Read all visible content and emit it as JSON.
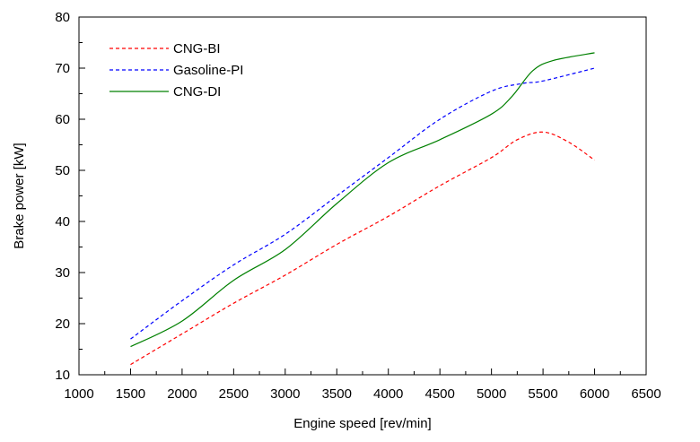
{
  "chart_data": {
    "type": "line",
    "title": "",
    "xlabel": "Engine speed [rev/min]",
    "ylabel": "Brake power [kW]",
    "xlim": [
      1000,
      6500
    ],
    "ylim": [
      10,
      80
    ],
    "xticks": [
      1000,
      1500,
      2000,
      2500,
      3000,
      3500,
      4000,
      4500,
      5000,
      5500,
      6000,
      6500
    ],
    "yticks": [
      10,
      20,
      30,
      40,
      50,
      60,
      70,
      80
    ],
    "x_minor_step": 250,
    "y_minor_step": 5,
    "grid": false,
    "legend_position": "top-left",
    "series": [
      {
        "name": "CNG-BI",
        "color": "#ff0000",
        "style": "dashed",
        "x": [
          1500,
          2000,
          2500,
          3000,
          3500,
          4000,
          4500,
          5000,
          5250,
          5500,
          5750,
          6000
        ],
        "y": [
          12.0,
          18.0,
          24.0,
          29.5,
          35.5,
          41.0,
          47.0,
          52.5,
          56.0,
          57.5,
          55.5,
          52.0
        ]
      },
      {
        "name": "Gasoline-PI",
        "color": "#0000ff",
        "style": "dashed",
        "x": [
          1500,
          2000,
          2500,
          3000,
          3500,
          4000,
          4500,
          5000,
          5300,
          5500,
          6000
        ],
        "y": [
          17.0,
          24.5,
          31.5,
          37.5,
          45.0,
          52.5,
          60.0,
          65.5,
          67.0,
          67.5,
          70.0
        ]
      },
      {
        "name": "CNG-DI",
        "color": "#008000",
        "style": "solid",
        "x": [
          1500,
          2000,
          2500,
          3000,
          3500,
          4000,
          4500,
          5000,
          5200,
          5400,
          5600,
          6000
        ],
        "y": [
          15.5,
          20.5,
          28.5,
          34.5,
          43.5,
          51.5,
          56.0,
          61.0,
          64.5,
          69.5,
          71.5,
          73.0
        ]
      }
    ]
  }
}
